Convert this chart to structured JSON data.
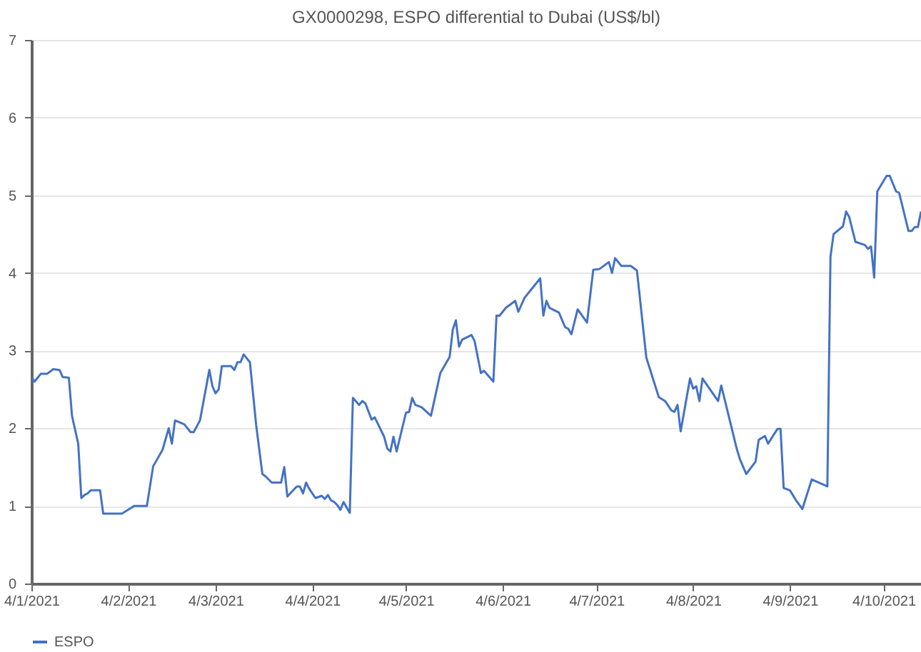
{
  "chart_data": {
    "type": "line",
    "title": "GX0000298, ESPO differential to Dubai (US$/bl)",
    "x": [
      "2021-01-04",
      "2021-01-05",
      "2021-01-07",
      "2021-01-09",
      "2021-01-11",
      "2021-01-13",
      "2021-01-14",
      "2021-01-16",
      "2021-01-17",
      "2021-01-19",
      "2021-01-20",
      "2021-01-21",
      "2021-01-22",
      "2021-01-23",
      "2021-01-26",
      "2021-01-27",
      "2021-02-02",
      "2021-02-04",
      "2021-02-06",
      "2021-02-10",
      "2021-02-12",
      "2021-02-15",
      "2021-02-17",
      "2021-02-18",
      "2021-02-19",
      "2021-02-22",
      "2021-02-24",
      "2021-02-25",
      "2021-02-27",
      "2021-03-02",
      "2021-03-03",
      "2021-03-04",
      "2021-03-05",
      "2021-03-06",
      "2021-03-09",
      "2021-03-10",
      "2021-03-11",
      "2021-03-12",
      "2021-03-13",
      "2021-03-15",
      "2021-03-17",
      "2021-03-19",
      "2021-03-20",
      "2021-03-22",
      "2021-03-25",
      "2021-03-26",
      "2021-03-27",
      "2021-03-30",
      "2021-03-31",
      "2021-04-01",
      "2021-04-02",
      "2021-04-03",
      "2021-04-05",
      "2021-04-07",
      "2021-04-08",
      "2021-04-09",
      "2021-04-10",
      "2021-04-11",
      "2021-04-12",
      "2021-04-13",
      "2021-04-14",
      "2021-04-16",
      "2021-04-17",
      "2021-04-19",
      "2021-04-20",
      "2021-04-21",
      "2021-04-23",
      "2021-04-24",
      "2021-04-27",
      "2021-04-28",
      "2021-04-29",
      "2021-04-30",
      "2021-05-01",
      "2021-05-04",
      "2021-05-05",
      "2021-05-06",
      "2021-05-07",
      "2021-05-09",
      "2021-05-12",
      "2021-05-15",
      "2021-05-18",
      "2021-05-19",
      "2021-05-20",
      "2021-05-21",
      "2021-05-22",
      "2021-05-25",
      "2021-05-26",
      "2021-05-28",
      "2021-05-29",
      "2021-06-01",
      "2021-06-02",
      "2021-06-03",
      "2021-06-05",
      "2021-06-08",
      "2021-06-09",
      "2021-06-11",
      "2021-06-13",
      "2021-06-16",
      "2021-06-17",
      "2021-06-18",
      "2021-06-19",
      "2021-06-22",
      "2021-06-24",
      "2021-06-25",
      "2021-06-26",
      "2021-06-28",
      "2021-07-01",
      "2021-07-03",
      "2021-07-05",
      "2021-07-08",
      "2021-07-09",
      "2021-07-10",
      "2021-07-12",
      "2021-07-15",
      "2021-07-17",
      "2021-07-20",
      "2021-07-24",
      "2021-07-26",
      "2021-07-28",
      "2021-07-29",
      "2021-07-30",
      "2021-07-31",
      "2021-08-03",
      "2021-08-04",
      "2021-08-05",
      "2021-08-06",
      "2021-08-07",
      "2021-08-12",
      "2021-08-13",
      "2021-08-18",
      "2021-08-19",
      "2021-08-21",
      "2021-08-24",
      "2021-08-25",
      "2021-08-27",
      "2021-08-28",
      "2021-08-31",
      "2021-09-01",
      "2021-09-02",
      "2021-09-04",
      "2021-09-06",
      "2021-09-08",
      "2021-09-11",
      "2021-09-15",
      "2021-09-16",
      "2021-09-17",
      "2021-09-18",
      "2021-09-21",
      "2021-09-22",
      "2021-09-23",
      "2021-09-25",
      "2021-09-28",
      "2021-09-29",
      "2021-09-30",
      "2021-10-01",
      "2021-10-02",
      "2021-10-05",
      "2021-10-06",
      "2021-10-08",
      "2021-10-09",
      "2021-10-12",
      "2021-10-13",
      "2021-10-14",
      "2021-10-15",
      "2021-10-16"
    ],
    "series": [
      {
        "name": "ESPO",
        "color": "#4472c4",
        "values": [
          2.66,
          2.6,
          2.7,
          2.7,
          2.76,
          2.75,
          2.66,
          2.65,
          2.16,
          1.8,
          1.1,
          1.14,
          1.16,
          1.2,
          1.2,
          0.9,
          0.9,
          0.95,
          1.0,
          1.0,
          1.51,
          1.72,
          2.0,
          1.8,
          2.1,
          2.05,
          1.95,
          1.95,
          2.1,
          2.75,
          2.54,
          2.45,
          2.5,
          2.8,
          2.8,
          2.75,
          2.85,
          2.85,
          2.95,
          2.85,
          2.04,
          1.41,
          1.38,
          1.3,
          1.3,
          1.5,
          1.12,
          1.25,
          1.25,
          1.16,
          1.3,
          1.22,
          1.1,
          1.13,
          1.09,
          1.14,
          1.07,
          1.05,
          1.01,
          0.95,
          1.05,
          0.91,
          2.39,
          2.3,
          2.35,
          2.32,
          2.11,
          2.14,
          1.89,
          1.74,
          1.7,
          1.89,
          1.7,
          2.2,
          2.21,
          2.39,
          2.3,
          2.27,
          2.16,
          2.71,
          2.92,
          3.27,
          3.39,
          3.05,
          3.14,
          3.2,
          3.12,
          2.71,
          2.74,
          2.6,
          3.45,
          3.45,
          3.55,
          3.64,
          3.5,
          3.68,
          3.78,
          3.93,
          3.45,
          3.64,
          3.55,
          3.49,
          3.3,
          3.28,
          3.21,
          3.53,
          3.36,
          4.04,
          4.05,
          4.14,
          4.0,
          4.19,
          4.09,
          4.09,
          4.03,
          2.91,
          2.4,
          2.35,
          2.23,
          2.21,
          2.3,
          1.96,
          2.64,
          2.51,
          2.54,
          2.35,
          2.64,
          2.35,
          2.55,
          1.73,
          1.6,
          1.41,
          1.57,
          1.85,
          1.9,
          1.8,
          1.99,
          1.99,
          1.23,
          1.2,
          1.07,
          0.96,
          1.34,
          1.27,
          1.25,
          4.21,
          4.5,
          4.6,
          4.79,
          4.72,
          4.4,
          4.36,
          4.31,
          4.34,
          3.94,
          5.05,
          5.25,
          5.25,
          5.05,
          5.03,
          4.54,
          4.54,
          4.59,
          4.59,
          4.79
        ]
      }
    ],
    "xlim": [
      "2021-01-04",
      "2021-10-16"
    ],
    "xticks": [
      {
        "value": "2021-01-04",
        "label": "4/1/2021"
      },
      {
        "value": "2021-02-04",
        "label": "4/2/2021"
      },
      {
        "value": "2021-03-04",
        "label": "4/3/2021"
      },
      {
        "value": "2021-04-04",
        "label": "4/4/2021"
      },
      {
        "value": "2021-05-04",
        "label": "4/5/2021"
      },
      {
        "value": "2021-06-04",
        "label": "4/6/2021"
      },
      {
        "value": "2021-07-04",
        "label": "4/7/2021"
      },
      {
        "value": "2021-08-04",
        "label": "4/8/2021"
      },
      {
        "value": "2021-09-04",
        "label": "4/9/2021"
      },
      {
        "value": "2021-10-04",
        "label": "4/10/2021"
      }
    ],
    "ylim": [
      0,
      7
    ],
    "yticks": [
      0,
      1,
      2,
      3,
      4,
      5,
      6,
      7
    ],
    "grid": "y",
    "legend": "bottom",
    "marker": "none",
    "line_style": "solid"
  }
}
